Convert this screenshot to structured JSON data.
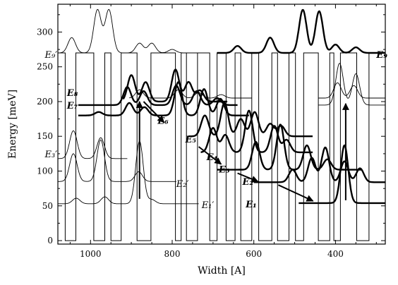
{
  "chart_data": {
    "type": "line",
    "title": "",
    "xlabel": "Width [A]",
    "ylabel": "Energy [meV]",
    "x_reversed": true,
    "xlim": [
      1080,
      278
    ],
    "ylim": [
      -5,
      340
    ],
    "xticks": [
      1000,
      800,
      600,
      400
    ],
    "yticks": [
      0,
      50,
      100,
      150,
      200,
      250,
      300
    ],
    "grid": false,
    "well_profile": {
      "barrier_energy": 270,
      "well_bottom": 0,
      "wells": [
        [
          1062,
          1036
        ],
        [
          992,
          965
        ],
        [
          950,
          925
        ],
        [
          886,
          852
        ],
        [
          792,
          778
        ],
        [
          765,
          738
        ],
        [
          708,
          690
        ],
        [
          668,
          646
        ],
        [
          632,
          605
        ],
        [
          588,
          556
        ],
        [
          542,
          514
        ],
        [
          498,
          478
        ],
        [
          442,
          414
        ],
        [
          404,
          388
        ],
        [
          348,
          318
        ]
      ]
    },
    "annotations": [
      {
        "text": "E₈",
        "x": 1058,
        "y": 208,
        "style": "bold"
      },
      {
        "text": "E₇",
        "x": 1058,
        "y": 190,
        "style": "bold"
      },
      {
        "text": "E₆",
        "x": 836,
        "y": 168,
        "style": "bold"
      },
      {
        "text": "E₅",
        "x": 768,
        "y": 141,
        "style": "bold"
      },
      {
        "text": "E₄",
        "x": 716,
        "y": 116,
        "style": "bold"
      },
      {
        "text": "E₃",
        "x": 686,
        "y": 98,
        "style": "bold"
      },
      {
        "text": "E₂",
        "x": 628,
        "y": 80,
        "style": "bold"
      },
      {
        "text": "E₁",
        "x": 620,
        "y": 48,
        "style": "bold"
      },
      {
        "text": "E₃′",
        "x": 1112,
        "y": 120,
        "style": "light"
      },
      {
        "text": "E₂′",
        "x": 790,
        "y": 77,
        "style": "light"
      },
      {
        "text": "E₁′",
        "x": 728,
        "y": 47,
        "style": "light"
      },
      {
        "text": "E₉′",
        "x": 1112,
        "y": 263,
        "style": "light"
      },
      {
        "text": "E₉",
        "x": 300,
        "y": 263,
        "style": "bold"
      }
    ],
    "arrows": [
      {
        "from": [
          880,
          60
        ],
        "to": [
          880,
          200
        ]
      },
      {
        "from": [
          375,
          58
        ],
        "to": [
          375,
          197
        ]
      },
      {
        "from": [
          870,
          200
        ],
        "to": [
          820,
          170
        ]
      },
      {
        "from": [
          735,
          135
        ],
        "to": [
          680,
          110
        ]
      },
      {
        "from": [
          640,
          97
        ],
        "to": [
          590,
          85
        ]
      },
      {
        "from": [
          540,
          80
        ],
        "to": [
          455,
          57
        ]
      }
    ],
    "series": [
      {
        "style": "bold",
        "offset": 200,
        "x_start": 920,
        "x_end": 665,
        "peaks": [
          [
            900,
            38
          ],
          [
            865,
            28
          ],
          [
            792,
            46
          ],
          [
            760,
            28
          ],
          [
            732,
            16
          ]
        ]
      },
      {
        "style": "bold",
        "offset": 195,
        "x_start": 1030,
        "x_end": 640,
        "peaks": [
          [
            910,
            26
          ],
          [
            870,
            20
          ],
          [
            790,
            28
          ],
          [
            740,
            20
          ],
          [
            690,
            10
          ]
        ]
      },
      {
        "style": "bold",
        "offset": 180,
        "x_start": 1030,
        "x_end": 612,
        "peaks": [
          [
            980,
            5
          ],
          [
            905,
            18
          ],
          [
            868,
            12
          ],
          [
            785,
            48
          ],
          [
            722,
            38
          ],
          [
            682,
            24
          ]
        ]
      },
      {
        "style": "bold",
        "offset": 150,
        "x_start": 760,
        "x_end": 456,
        "peaks": [
          [
            720,
            30
          ],
          [
            672,
            48
          ],
          [
            632,
            25
          ],
          [
            598,
            35
          ],
          [
            560,
            18
          ],
          [
            533,
            15
          ]
        ]
      },
      {
        "style": "bold",
        "offset": 127,
        "x_start": 730,
        "x_end": 456,
        "peaks": [
          [
            700,
            35
          ],
          [
            670,
            25
          ],
          [
            612,
            60
          ],
          [
            550,
            38
          ],
          [
            520,
            18
          ]
        ]
      },
      {
        "style": "bold",
        "offset": 102,
        "x_start": 690,
        "x_end": 335,
        "peaks": [
          [
            595,
            40
          ],
          [
            535,
            65
          ],
          [
            470,
            35
          ],
          [
            420,
            15
          ]
        ]
      },
      {
        "style": "bold",
        "offset": 84,
        "x_start": 600,
        "x_end": 278,
        "peaks": [
          [
            505,
            18
          ],
          [
            458,
            35
          ],
          [
            425,
            50
          ],
          [
            378,
            30
          ],
          [
            340,
            20
          ]
        ]
      },
      {
        "style": "bold",
        "offset": 54,
        "x_start": 490,
        "x_end": 278,
        "peaks": [
          [
            378,
            83
          ]
        ]
      },
      {
        "style": "bold",
        "offset": 270,
        "x_start": 690,
        "x_end": 278,
        "peaks": [
          [
            640,
            10
          ],
          [
            560,
            22
          ],
          [
            480,
            62
          ],
          [
            440,
            60
          ],
          [
            400,
            12
          ],
          [
            350,
            8
          ]
        ]
      },
      {
        "style": "light",
        "offset": 270,
        "x_start": 1080,
        "x_end": 720,
        "peaks": [
          [
            1046,
            22
          ],
          [
            983,
            62
          ],
          [
            955,
            62
          ],
          [
            880,
            14
          ],
          [
            850,
            14
          ],
          [
            800,
            5
          ]
        ]
      },
      {
        "style": "light",
        "offset": 205,
        "x_start": 905,
        "x_end": 605,
        "peaks": [
          [
            880,
            12
          ],
          [
            785,
            12
          ],
          [
            735,
            8
          ],
          [
            680,
            5
          ]
        ]
      },
      {
        "style": "light",
        "offset": 118,
        "x_start": 1080,
        "x_end": 910,
        "peaks": [
          [
            1042,
            40
          ],
          [
            975,
            30
          ]
        ]
      },
      {
        "style": "light",
        "offset": 85,
        "x_start": 1080,
        "x_end": 790,
        "peaks": [
          [
            1042,
            40
          ],
          [
            975,
            60
          ],
          [
            882,
            14
          ]
        ]
      },
      {
        "style": "light",
        "offset": 53,
        "x_start": 1080,
        "x_end": 735,
        "peaks": [
          [
            1035,
            8
          ],
          [
            965,
            10
          ],
          [
            880,
            90
          ],
          [
            850,
            6
          ]
        ]
      },
      {
        "style": "light",
        "offset": 205,
        "x_start": 442,
        "x_end": 278,
        "peaks": [
          [
            395,
            22
          ],
          [
            355,
            18
          ]
        ]
      },
      {
        "style": "light",
        "offset": 195,
        "x_start": 442,
        "x_end": 278,
        "peaks": [
          [
            390,
            60
          ],
          [
            350,
            45
          ]
        ]
      }
    ]
  }
}
